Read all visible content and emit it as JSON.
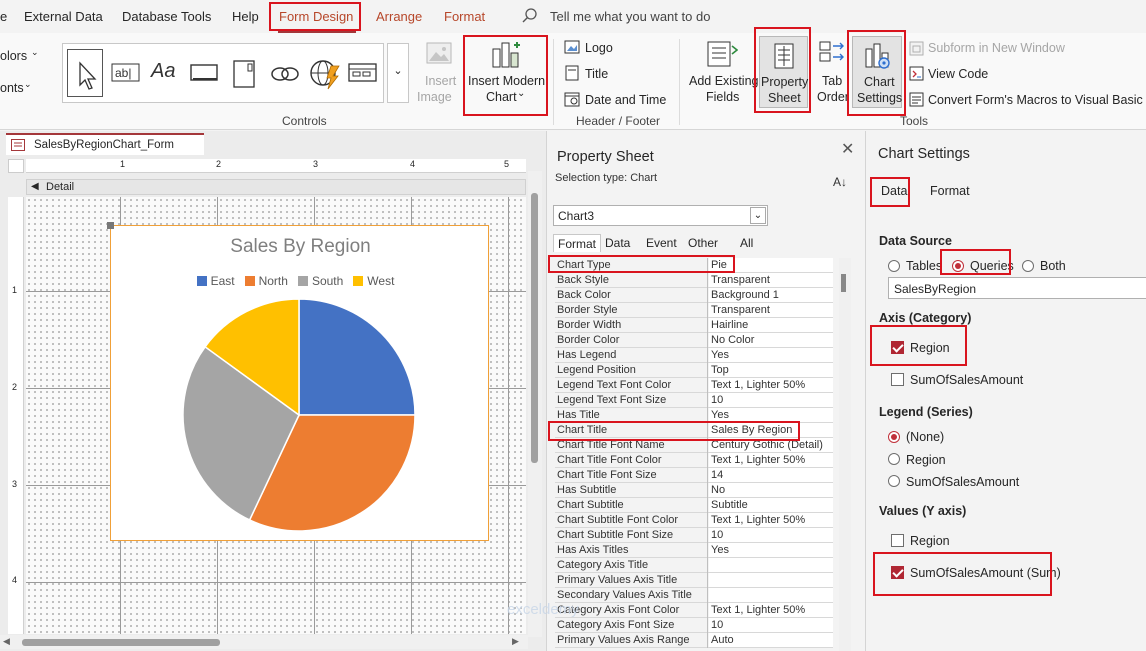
{
  "menubar": {
    "items": [
      "e",
      "External Data",
      "Database Tools",
      "Help",
      "Form Design",
      "Arrange",
      "Format"
    ],
    "search_placeholder": "Tell me what you want to do"
  },
  "ribbon": {
    "colors_label": "olors",
    "fonts_label": "onts",
    "insert_image": [
      "Insert",
      "Image"
    ],
    "insert_modern_chart": [
      "Insert Modern",
      "Chart"
    ],
    "controls_label": "Controls",
    "logo": "Logo",
    "title": "Title",
    "date_time": "Date and Time",
    "header_footer_label": "Header / Footer",
    "add_existing_fields": [
      "Add Existing",
      "Fields"
    ],
    "property_sheet": [
      "Property",
      "Sheet"
    ],
    "tab_order": [
      "Tab",
      "Order"
    ],
    "chart_settings": [
      "Chart",
      "Settings"
    ],
    "subform": "Subform in New Window",
    "view_code": "View Code",
    "convert_macros": "Convert Form's Macros to Visual Basic",
    "tools_label": "Tools"
  },
  "designer": {
    "tab_title": "SalesByRegionChart_Form",
    "section": "Detail",
    "ruler_top": [
      "1",
      "2",
      "3",
      "4",
      "5"
    ],
    "ruler_left": [
      "1",
      "2",
      "3",
      "4"
    ]
  },
  "chart_data": {
    "type": "pie",
    "title": "Sales By Region",
    "categories": [
      "East",
      "North",
      "South",
      "West"
    ],
    "values": [
      25,
      32,
      28,
      15
    ],
    "colors": [
      "#4472c4",
      "#ed7d31",
      "#a5a5a5",
      "#ffc000"
    ],
    "legend": "top"
  },
  "property_sheet": {
    "title": "Property Sheet",
    "selection_type": "Selection type:  Chart",
    "selected_object": "Chart3",
    "tabs": [
      "Format",
      "Data",
      "Event",
      "Other",
      "All"
    ],
    "rows": [
      {
        "name": "Chart Type",
        "value": "Pie"
      },
      {
        "name": "Back Style",
        "value": "Transparent"
      },
      {
        "name": "Back Color",
        "value": "Background 1"
      },
      {
        "name": "Border Style",
        "value": "Transparent"
      },
      {
        "name": "Border Width",
        "value": "Hairline"
      },
      {
        "name": "Border Color",
        "value": "No Color"
      },
      {
        "name": "Has Legend",
        "value": "Yes"
      },
      {
        "name": "Legend Position",
        "value": "Top"
      },
      {
        "name": "Legend Text Font Color",
        "value": "Text 1, Lighter 50%"
      },
      {
        "name": "Legend Text Font Size",
        "value": "10"
      },
      {
        "name": "Has Title",
        "value": "Yes"
      },
      {
        "name": "Chart Title",
        "value": "Sales By Region"
      },
      {
        "name": "Chart Title Font Name",
        "value": "Century Gothic (Detail)"
      },
      {
        "name": "Chart Title Font Color",
        "value": "Text 1, Lighter 50%"
      },
      {
        "name": "Chart Title Font Size",
        "value": "14"
      },
      {
        "name": "Has Subtitle",
        "value": "No"
      },
      {
        "name": "Chart Subtitle",
        "value": "Subtitle"
      },
      {
        "name": "Chart Subtitle Font Color",
        "value": "Text 1, Lighter 50%"
      },
      {
        "name": "Chart Subtitle Font Size",
        "value": "10"
      },
      {
        "name": "Has Axis Titles",
        "value": "Yes"
      },
      {
        "name": "Category Axis Title",
        "value": ""
      },
      {
        "name": "Primary Values Axis Title",
        "value": ""
      },
      {
        "name": "Secondary Values Axis Title",
        "value": ""
      },
      {
        "name": "Category Axis Font Color",
        "value": "Text 1, Lighter 50%"
      },
      {
        "name": "Category Axis Font Size",
        "value": "10"
      },
      {
        "name": "Primary Values Axis Range",
        "value": "Auto"
      }
    ]
  },
  "chart_settings": {
    "title": "Chart Settings",
    "tabs": [
      "Data",
      "Format"
    ],
    "data_source_label": "Data Source",
    "data_source_options": [
      "Tables",
      "Queries",
      "Both"
    ],
    "data_source_value": "SalesByRegion",
    "axis_label": "Axis (Category)",
    "axis_options": [
      "Region",
      "SumOfSalesAmount"
    ],
    "legend_label": "Legend (Series)",
    "legend_options": [
      "(None)",
      "Region",
      "SumOfSalesAmount"
    ],
    "values_label": "Values (Y axis)",
    "values_options": [
      "Region",
      "SumOfSalesAmount (Sum)"
    ]
  },
  "watermark": "exceldemy"
}
